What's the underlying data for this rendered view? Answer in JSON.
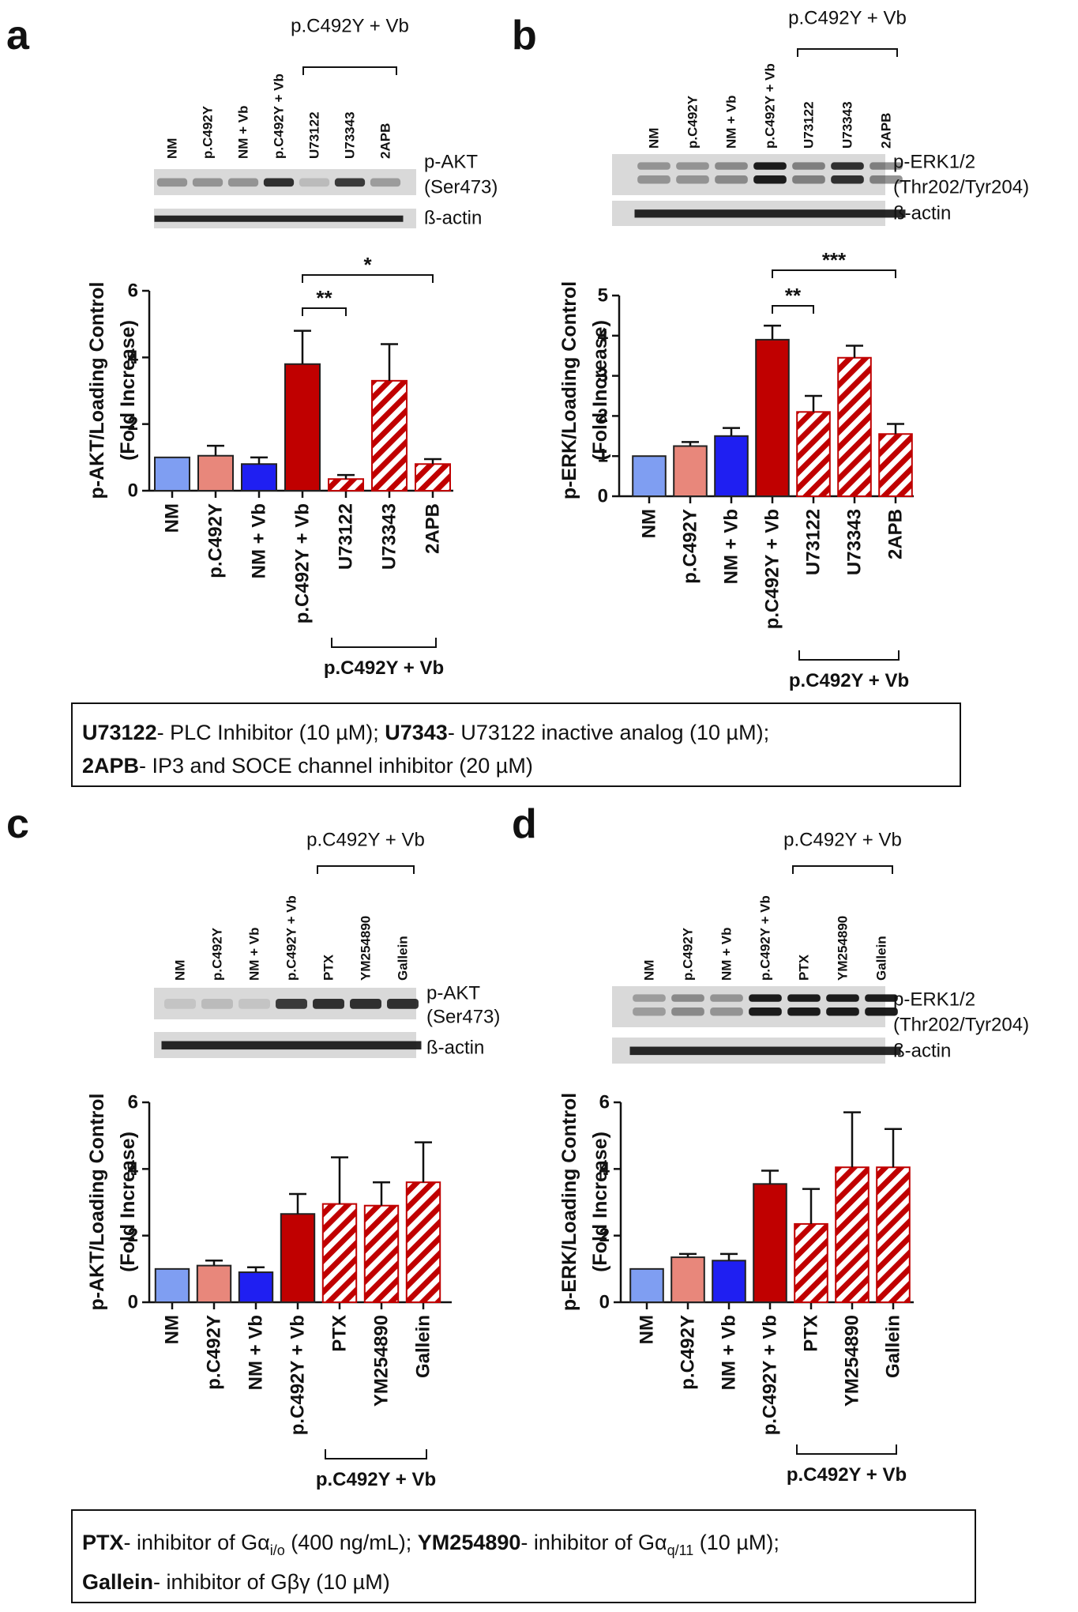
{
  "chart_data": [
    {
      "type": "bar",
      "panel": "a",
      "y_label": [
        "p-AKT/Loading Control",
        "(Fold Increase)"
      ],
      "categories": [
        "NM",
        "p.C492Y",
        "NM + Vb",
        "p.C492Y + Vb",
        "U73122",
        "U73343",
        "2APB"
      ],
      "values": [
        1,
        1.05,
        0.8,
        3.8,
        0.35,
        3.3,
        0.8
      ],
      "errors": [
        0,
        0.3,
        0.2,
        1.0,
        0.12,
        1.1,
        0.15
      ],
      "colors": [
        "#7f9ef2",
        "#e8877b",
        "#1f1ff2",
        "#c00000",
        "#c00000",
        "#c00000",
        "#c00000"
      ],
      "hatched": [
        false,
        false,
        false,
        false,
        true,
        true,
        true
      ],
      "ylim": [
        0,
        6
      ],
      "yticks": [
        0,
        2,
        4,
        6
      ],
      "group": {
        "label": "p.C492Y + Vb",
        "from": 4,
        "to": 6
      },
      "significance": [
        {
          "label": "**",
          "from": 3,
          "to": 4
        },
        {
          "label": "*",
          "from": 3,
          "to": 6
        }
      ],
      "blot": {
        "lanes": [
          "NM",
          "p.C492Y",
          "NM + Vb",
          "p.C492Y + Vb",
          "U73122",
          "U73343",
          "2APB"
        ],
        "group": {
          "label": "p.C492Y + Vb",
          "from": 4,
          "to": 6
        },
        "rows": [
          [
            "p-AKT",
            "(Ser473)"
          ],
          [
            "ß-actin"
          ]
        ]
      }
    },
    {
      "type": "bar",
      "panel": "b",
      "y_label": [
        "p-ERK/Loading Control",
        "(Fold Increase)"
      ],
      "categories": [
        "NM",
        "p.C492Y",
        "NM + Vb",
        "p.C492Y + Vb",
        "U73122",
        "U73343",
        "2APB"
      ],
      "values": [
        1,
        1.25,
        1.5,
        3.9,
        2.1,
        3.45,
        1.55
      ],
      "errors": [
        0,
        0.1,
        0.2,
        0.35,
        0.4,
        0.3,
        0.25
      ],
      "colors": [
        "#7f9ef2",
        "#e8877b",
        "#1f1ff2",
        "#c00000",
        "#c00000",
        "#c00000",
        "#c00000"
      ],
      "hatched": [
        false,
        false,
        false,
        false,
        true,
        true,
        true
      ],
      "ylim": [
        0,
        5
      ],
      "yticks": [
        0,
        1,
        2,
        3,
        4,
        5
      ],
      "group": {
        "label": "p.C492Y + Vb",
        "from": 4,
        "to": 6
      },
      "significance": [
        {
          "label": "**",
          "from": 3,
          "to": 4
        },
        {
          "label": "***",
          "from": 3,
          "to": 6
        }
      ],
      "blot": {
        "lanes": [
          "NM",
          "p.C492Y",
          "NM + Vb",
          "p.C492Y + Vb",
          "U73122",
          "U73343",
          "2APB"
        ],
        "group": {
          "label": "p.C492Y + Vb",
          "from": 4,
          "to": 6
        },
        "rows": [
          [
            "p-ERK1/2",
            "(Thr202/Tyr204)"
          ],
          [
            "ß-actin"
          ]
        ]
      }
    },
    {
      "type": "bar",
      "panel": "c",
      "y_label": [
        "p-AKT/Loading Control",
        "(Fold Increase)"
      ],
      "categories": [
        "NM",
        "p.C492Y",
        "NM + Vb",
        "p.C492Y + Vb",
        "PTX",
        "YM254890",
        "Gallein"
      ],
      "values": [
        1,
        1.1,
        0.9,
        2.65,
        2.95,
        2.9,
        3.6
      ],
      "errors": [
        0,
        0.15,
        0.15,
        0.6,
        1.4,
        0.7,
        1.2
      ],
      "colors": [
        "#7f9ef2",
        "#e8877b",
        "#1f1ff2",
        "#c00000",
        "#c00000",
        "#c00000",
        "#c00000"
      ],
      "hatched": [
        false,
        false,
        false,
        false,
        true,
        true,
        true
      ],
      "ylim": [
        0,
        6
      ],
      "yticks": [
        0,
        2,
        4,
        6
      ],
      "group": {
        "label": "p.C492Y + Vb",
        "from": 4,
        "to": 6
      },
      "blot": {
        "lanes": [
          "NM",
          "p.C492Y",
          "NM + Vb",
          "p.C492Y + Vb",
          "PTX",
          "YM254890",
          "Gallein"
        ],
        "group": {
          "label": "p.C492Y + Vb",
          "from": 4,
          "to": 6
        },
        "rows": [
          [
            "p-AKT",
            "(Ser473)"
          ],
          [
            "ß-actin"
          ]
        ]
      }
    },
    {
      "type": "bar",
      "panel": "d",
      "y_label": [
        "p-ERK/Loading Control",
        "(Fold Increase)"
      ],
      "categories": [
        "NM",
        "p.C492Y",
        "NM + Vb",
        "p.C492Y + Vb",
        "PTX",
        "YM254890",
        "Gallein"
      ],
      "values": [
        1,
        1.35,
        1.25,
        3.55,
        2.35,
        4.05,
        4.05
      ],
      "errors": [
        0,
        0.1,
        0.2,
        0.4,
        1.05,
        1.65,
        1.15
      ],
      "colors": [
        "#7f9ef2",
        "#e8877b",
        "#1f1ff2",
        "#c00000",
        "#c00000",
        "#c00000",
        "#c00000"
      ],
      "hatched": [
        false,
        false,
        false,
        false,
        true,
        true,
        true
      ],
      "ylim": [
        0,
        6
      ],
      "yticks": [
        0,
        2,
        4,
        6
      ],
      "group": {
        "label": "p.C492Y + Vb",
        "from": 4,
        "to": 6
      },
      "blot": {
        "lanes": [
          "NM",
          "p.C492Y",
          "NM + Vb",
          "p.C492Y + Vb",
          "PTX",
          "YM254890",
          "Gallein"
        ],
        "group": {
          "label": "p.C492Y + Vb",
          "from": 4,
          "to": 6
        },
        "rows": [
          [
            "p-ERK1/2",
            "(Thr202/Tyr204)"
          ],
          [
            "ß-actin"
          ]
        ]
      }
    }
  ],
  "notes": [
    [
      [
        {
          "text": "U73122",
          "bold": true
        },
        {
          "text": "- PLC Inhibitor (10 µM); "
        },
        {
          "text": "U7343",
          "bold": true
        },
        {
          "text": "- U73122  inactive analog (10 µM);"
        }
      ],
      [
        {
          "text": "2APB",
          "bold": true
        },
        {
          "text": "- IP3 and SOCE channel inhibitor (20 µM)"
        }
      ]
    ],
    [
      [
        {
          "text": "PTX",
          "bold": true
        },
        {
          "text": "- inhibitor of Gα"
        },
        {
          "text": "i/o",
          "sub": true
        },
        {
          "text": " (400 ng/mL); "
        },
        {
          "text": "YM254890",
          "bold": true
        },
        {
          "text": "- inhibitor of Gα"
        },
        {
          "text": "q/11",
          "sub": true
        },
        {
          "text": " (10 µM);"
        }
      ],
      [
        {
          "text": "Gallein",
          "bold": true
        },
        {
          "text": "- inhibitor of Gβγ (10 µM)"
        }
      ]
    ]
  ]
}
